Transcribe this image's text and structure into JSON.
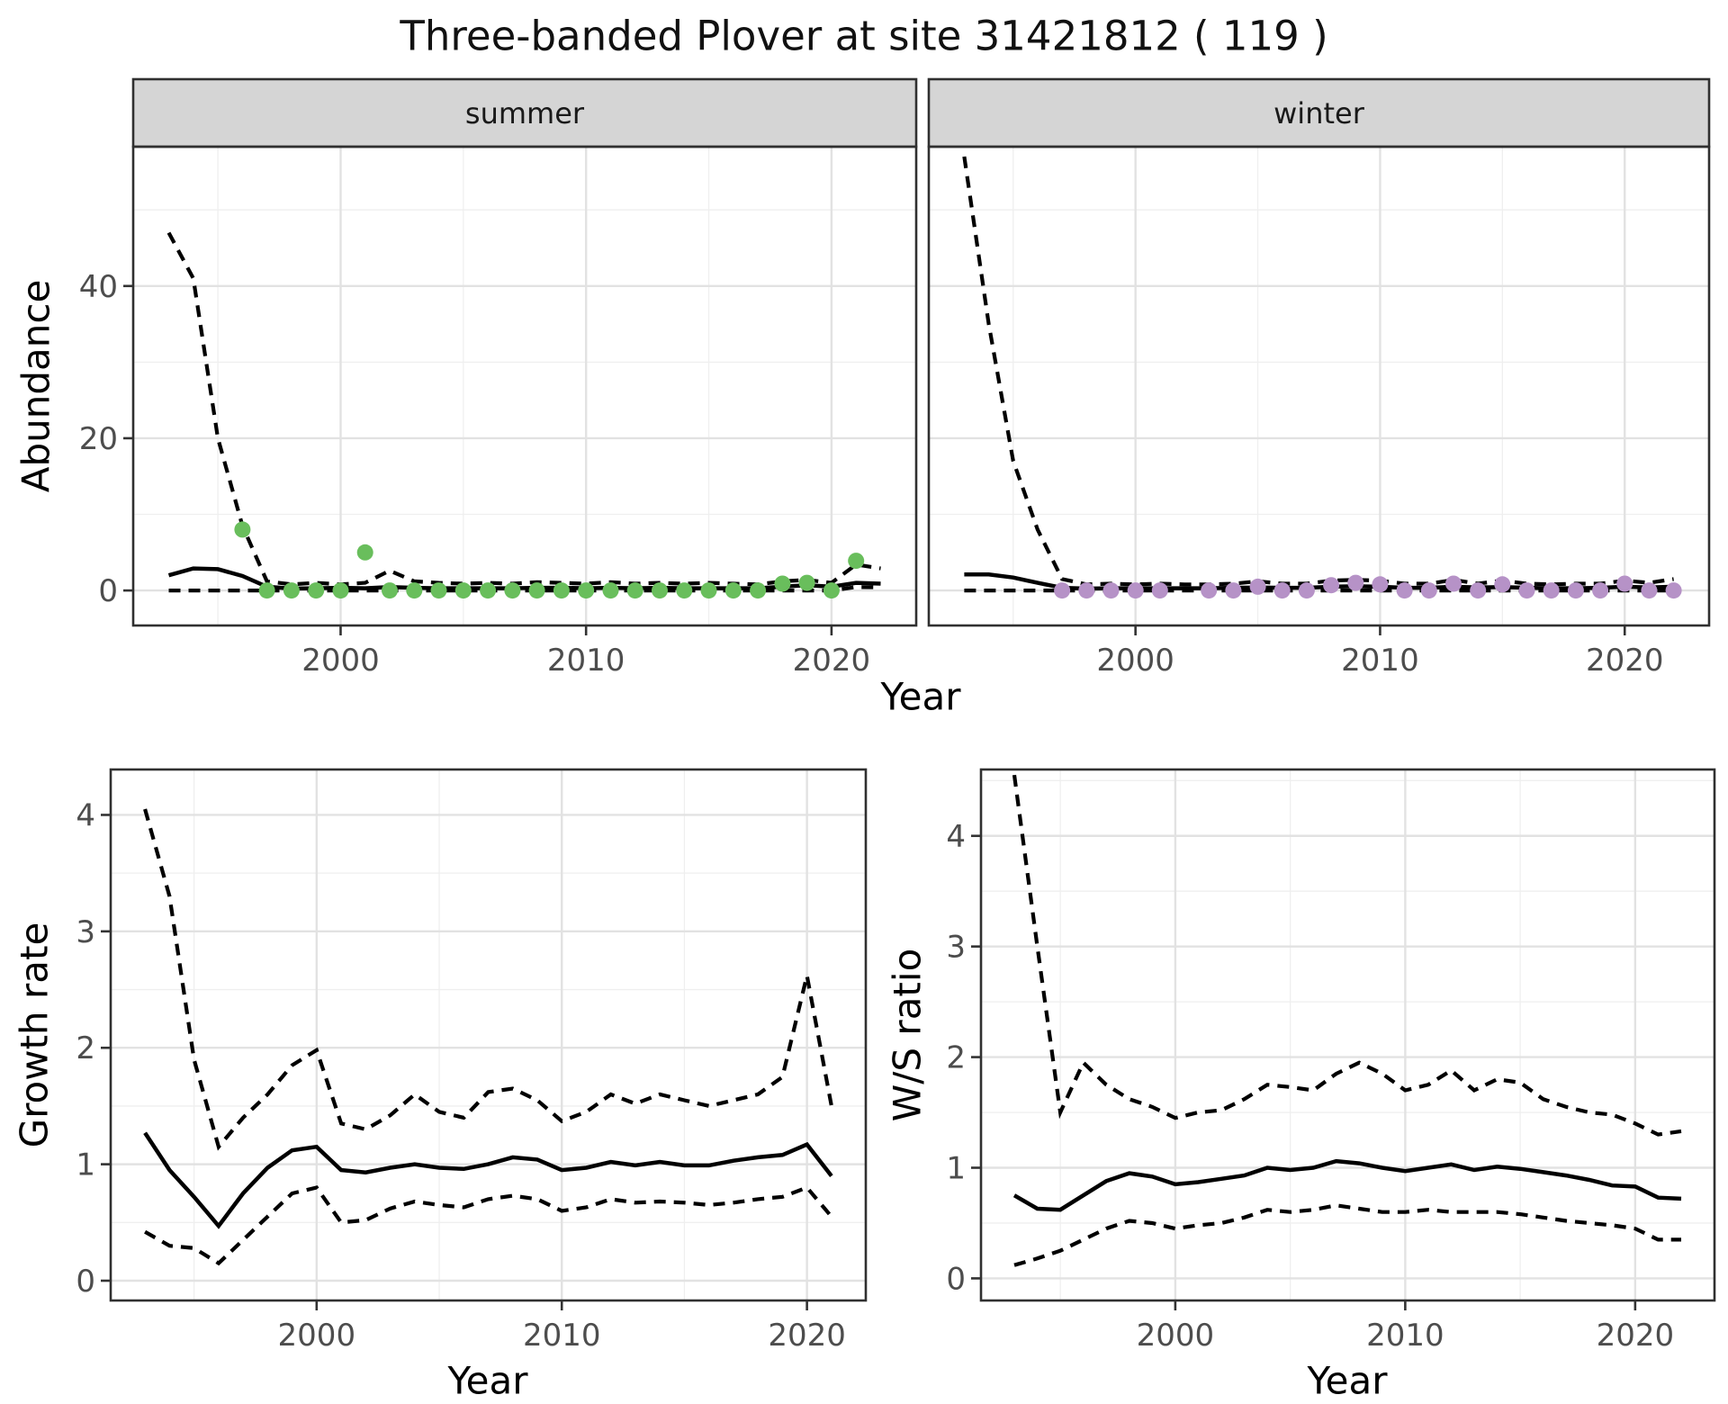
{
  "title": "Three-banded Plover at site 31421812 ( 119 )",
  "axes": {
    "abundance_label": "Abundance",
    "growth_label": "Growth rate",
    "ws_label": "W/S ratio",
    "year_label_top": "Year",
    "year_label_growth": "Year",
    "year_label_ws": "Year"
  },
  "facets": {
    "summer": "summer",
    "winter": "winter"
  },
  "colors": {
    "summer_points": "#69be5c",
    "winter_points": "#b692c7",
    "line": "#000000",
    "strip_bg": "#d5d5d5",
    "panel_border": "#303030",
    "grid_major": "#e2e2e2",
    "grid_minor": "#efefef",
    "tick_mark": "#333333",
    "tick_text": "#4d4d4d"
  },
  "chart_data": [
    {
      "id": "summer",
      "type": "line",
      "facet_label": "summer",
      "xlabel": "Year",
      "ylabel": "Abundance",
      "xlim": [
        1991.55,
        2023.45
      ],
      "ylim": [
        -4.6,
        58.3
      ],
      "x_ticks": [
        2000,
        2010,
        2020
      ],
      "x_minor": [
        1995,
        2005,
        2015
      ],
      "y_ticks": [
        0,
        20,
        40
      ],
      "y_minor": [
        10,
        30,
        50
      ],
      "x": [
        1993,
        1994,
        1995,
        1996,
        1997,
        1998,
        1999,
        2000,
        2001,
        2002,
        2003,
        2004,
        2005,
        2006,
        2007,
        2008,
        2009,
        2010,
        2011,
        2012,
        2013,
        2014,
        2015,
        2016,
        2017,
        2018,
        2019,
        2020,
        2021,
        2022
      ],
      "series": [
        {
          "name": "median",
          "style": "solid",
          "values": [
            2.0,
            2.9,
            2.8,
            1.9,
            0.5,
            0.25,
            0.3,
            0.35,
            0.3,
            0.45,
            0.35,
            0.3,
            0.3,
            0.3,
            0.3,
            0.35,
            0.35,
            0.3,
            0.35,
            0.3,
            0.35,
            0.3,
            0.3,
            0.3,
            0.3,
            0.5,
            0.7,
            0.5,
            1.0,
            0.9
          ]
        },
        {
          "name": "ci-upper",
          "style": "dashed",
          "values": [
            47,
            41,
            20,
            8.5,
            1.2,
            0.8,
            1.0,
            0.8,
            1.0,
            2.6,
            1.2,
            1.0,
            0.9,
            1.0,
            0.9,
            1.1,
            1.0,
            0.9,
            1.1,
            0.9,
            1.0,
            0.9,
            1.0,
            0.9,
            0.8,
            1.2,
            1.4,
            1.0,
            3.4,
            2.9
          ]
        },
        {
          "name": "ci-lower",
          "style": "dashed",
          "values": [
            0,
            0,
            0,
            0,
            0,
            0,
            0,
            0,
            0,
            0,
            0,
            0,
            0,
            0,
            0,
            0,
            0,
            0,
            0,
            0,
            0,
            0,
            0,
            0,
            0,
            0,
            0,
            0,
            0.45,
            0.4
          ]
        }
      ],
      "points": {
        "name": "observed-counts-summer",
        "color": "#69be5c",
        "x": [
          1996,
          1997,
          1998,
          1999,
          2000,
          2001,
          2002,
          2003,
          2004,
          2005,
          2006,
          2007,
          2008,
          2009,
          2010,
          2011,
          2012,
          2013,
          2014,
          2015,
          2016,
          2017,
          2018,
          2019,
          2020,
          2021
        ],
        "values": [
          8,
          0,
          0,
          0,
          0,
          5,
          0,
          0,
          0,
          0,
          0,
          0,
          0,
          0,
          0,
          0,
          0,
          0,
          0,
          0,
          0,
          0,
          0.9,
          1.0,
          0,
          3.9
        ]
      }
    },
    {
      "id": "winter",
      "type": "line",
      "facet_label": "winter",
      "xlabel": "Year",
      "ylabel": "Abundance",
      "xlim": [
        1991.55,
        2023.45
      ],
      "ylim": [
        -4.6,
        58.3
      ],
      "x_ticks": [
        2000,
        2010,
        2020
      ],
      "x_minor": [
        1995,
        2005,
        2015
      ],
      "y_ticks": [
        0,
        20,
        40
      ],
      "y_minor": [
        10,
        30,
        50
      ],
      "x": [
        1993,
        1994,
        1995,
        1996,
        1997,
        1998,
        1999,
        2000,
        2001,
        2002,
        2003,
        2004,
        2005,
        2006,
        2007,
        2008,
        2009,
        2010,
        2011,
        2012,
        2013,
        2014,
        2015,
        2016,
        2017,
        2018,
        2019,
        2020,
        2021,
        2022
      ],
      "series": [
        {
          "name": "median",
          "style": "solid",
          "values": [
            2.1,
            2.1,
            1.7,
            1.0,
            0.35,
            0.25,
            0.3,
            0.3,
            0.3,
            0.3,
            0.3,
            0.35,
            0.4,
            0.35,
            0.35,
            0.5,
            0.55,
            0.5,
            0.35,
            0.35,
            0.5,
            0.4,
            0.45,
            0.35,
            0.3,
            0.3,
            0.35,
            0.5,
            0.4,
            0.5
          ]
        },
        {
          "name": "ci-upper",
          "style": "dashed",
          "values": [
            57,
            35,
            17,
            8,
            1.5,
            0.8,
            0.9,
            0.8,
            0.9,
            0.8,
            0.8,
            0.9,
            1.2,
            0.9,
            0.9,
            1.3,
            1.4,
            1.3,
            0.9,
            0.9,
            1.4,
            0.9,
            1.3,
            0.9,
            0.8,
            0.9,
            0.9,
            1.3,
            1.0,
            1.5
          ]
        },
        {
          "name": "ci-lower",
          "style": "dashed",
          "values": [
            0,
            0,
            0,
            0,
            0,
            0,
            0,
            0,
            0,
            0,
            0,
            0,
            0,
            0,
            0,
            0,
            0,
            0,
            0,
            0,
            0,
            0,
            0,
            0,
            0,
            0,
            0,
            0,
            0,
            0
          ]
        }
      ],
      "points": {
        "name": "observed-counts-winter",
        "color": "#b692c7",
        "x": [
          1997,
          1998,
          1999,
          2000,
          2001,
          2003,
          2004,
          2005,
          2006,
          2007,
          2008,
          2009,
          2010,
          2011,
          2012,
          2013,
          2014,
          2015,
          2016,
          2017,
          2018,
          2019,
          2020,
          2021,
          2022
        ],
        "values": [
          0,
          0,
          0,
          0,
          0,
          0,
          0,
          0.5,
          0,
          0,
          0.7,
          1.0,
          0.8,
          0,
          0,
          0.9,
          0,
          0.8,
          0,
          0,
          0,
          0,
          0.9,
          0,
          0
        ]
      }
    },
    {
      "id": "growth",
      "type": "line",
      "facet_label": "",
      "xlabel": "Year",
      "ylabel": "Growth rate",
      "xlim": [
        1991.6,
        2022.4
      ],
      "ylim": [
        -0.17,
        4.39
      ],
      "x_ticks": [
        2000,
        2010,
        2020
      ],
      "x_minor": [
        1995,
        2005,
        2015
      ],
      "y_ticks": [
        0,
        1,
        2,
        3,
        4
      ],
      "y_minor": [
        0.5,
        1.5,
        2.5,
        3.5
      ],
      "x": [
        1993,
        1994,
        1995,
        1996,
        1997,
        1998,
        1999,
        2000,
        2001,
        2002,
        2003,
        2004,
        2005,
        2006,
        2007,
        2008,
        2009,
        2010,
        2011,
        2012,
        2013,
        2014,
        2015,
        2016,
        2017,
        2018,
        2019,
        2020,
        2021
      ],
      "series": [
        {
          "name": "median",
          "style": "solid",
          "values": [
            1.27,
            0.95,
            0.72,
            0.47,
            0.75,
            0.97,
            1.12,
            1.15,
            0.95,
            0.93,
            0.97,
            1.0,
            0.97,
            0.96,
            1.0,
            1.06,
            1.04,
            0.95,
            0.97,
            1.02,
            0.99,
            1.02,
            0.99,
            0.99,
            1.03,
            1.06,
            1.08,
            1.17,
            0.9
          ]
        },
        {
          "name": "ci-upper",
          "style": "dashed",
          "values": [
            4.05,
            3.3,
            1.9,
            1.15,
            1.4,
            1.6,
            1.85,
            1.98,
            1.35,
            1.3,
            1.42,
            1.6,
            1.45,
            1.4,
            1.62,
            1.65,
            1.55,
            1.37,
            1.45,
            1.6,
            1.52,
            1.6,
            1.55,
            1.5,
            1.55,
            1.6,
            1.75,
            2.62,
            1.5
          ]
        },
        {
          "name": "ci-lower",
          "style": "dashed",
          "values": [
            0.42,
            0.3,
            0.28,
            0.15,
            0.35,
            0.55,
            0.75,
            0.8,
            0.5,
            0.52,
            0.62,
            0.68,
            0.65,
            0.63,
            0.7,
            0.73,
            0.7,
            0.6,
            0.63,
            0.7,
            0.67,
            0.68,
            0.67,
            0.65,
            0.67,
            0.7,
            0.72,
            0.8,
            0.55
          ]
        }
      ]
    },
    {
      "id": "ws",
      "type": "line",
      "facet_label": "",
      "xlabel": "Year",
      "ylabel": "W/S ratio",
      "xlim": [
        1991.55,
        2023.45
      ],
      "ylim": [
        -0.2,
        4.6
      ],
      "x_ticks": [
        2000,
        2010,
        2020
      ],
      "x_minor": [
        1995,
        2005,
        2015
      ],
      "y_ticks": [
        0,
        1,
        2,
        3,
        4
      ],
      "y_minor": [
        0.5,
        1.5,
        2.5,
        3.5,
        4.5
      ],
      "x": [
        1993,
        1994,
        1995,
        1996,
        1997,
        1998,
        1999,
        2000,
        2001,
        2002,
        2003,
        2004,
        2005,
        2006,
        2007,
        2008,
        2009,
        2010,
        2011,
        2012,
        2013,
        2014,
        2015,
        2016,
        2017,
        2018,
        2019,
        2020,
        2021,
        2022
      ],
      "series": [
        {
          "name": "median",
          "style": "solid",
          "values": [
            0.75,
            0.63,
            0.62,
            0.75,
            0.88,
            0.95,
            0.92,
            0.85,
            0.87,
            0.9,
            0.93,
            1.0,
            0.98,
            1.0,
            1.06,
            1.04,
            1.0,
            0.97,
            1.0,
            1.03,
            0.98,
            1.01,
            0.99,
            0.96,
            0.93,
            0.89,
            0.84,
            0.83,
            0.73,
            0.72
          ]
        },
        {
          "name": "ci-upper",
          "style": "dashed",
          "values": [
            4.55,
            3.0,
            1.5,
            1.95,
            1.75,
            1.62,
            1.55,
            1.45,
            1.5,
            1.52,
            1.62,
            1.75,
            1.73,
            1.7,
            1.85,
            1.95,
            1.85,
            1.7,
            1.75,
            1.88,
            1.7,
            1.8,
            1.77,
            1.62,
            1.55,
            1.5,
            1.48,
            1.4,
            1.3,
            1.33
          ]
        },
        {
          "name": "ci-lower",
          "style": "dashed",
          "values": [
            0.12,
            0.18,
            0.25,
            0.35,
            0.45,
            0.52,
            0.5,
            0.45,
            0.48,
            0.5,
            0.55,
            0.62,
            0.6,
            0.62,
            0.66,
            0.63,
            0.6,
            0.6,
            0.62,
            0.6,
            0.6,
            0.6,
            0.58,
            0.55,
            0.52,
            0.5,
            0.48,
            0.45,
            0.35,
            0.35
          ]
        }
      ]
    }
  ]
}
